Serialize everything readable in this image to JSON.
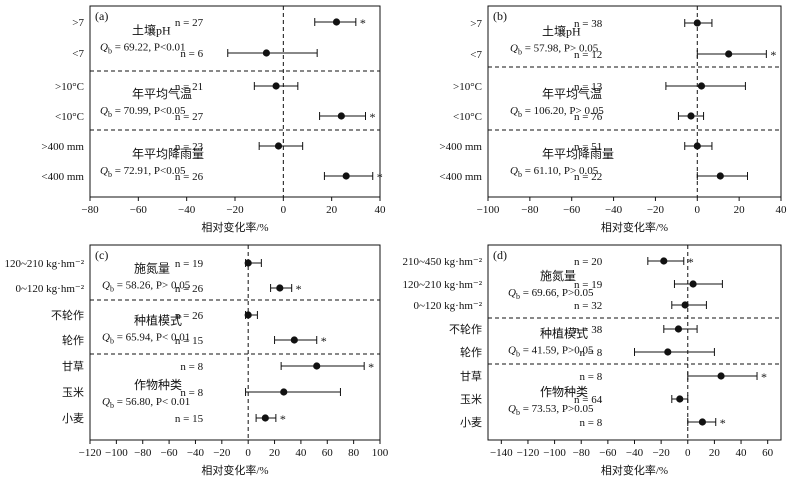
{
  "chart_data": [
    {
      "type": "forest",
      "panel_label": "(a)",
      "xlabel": "相对变化率/%",
      "xlim": [
        -80,
        40
      ],
      "xticks": [
        -80,
        -60,
        -40,
        -20,
        0,
        20,
        40
      ],
      "rows": [
        {
          "label": ">7",
          "n": "n = 27",
          "mean": 22,
          "ci": [
            13,
            30
          ],
          "sig": true
        },
        {
          "label": "<7",
          "n": "n = 6",
          "mean": -7,
          "ci": [
            -23,
            14
          ],
          "sig": false
        },
        {
          "label": ">10°C",
          "n": "n = 21",
          "mean": -3,
          "ci": [
            -12,
            6
          ],
          "sig": false
        },
        {
          "label": "<10°C",
          "n": "n = 27",
          "mean": 24,
          "ci": [
            15,
            34
          ],
          "sig": true
        },
        {
          "label": ">400 mm",
          "n": "n = 23",
          "mean": -2,
          "ci": [
            -10,
            8
          ],
          "sig": false
        },
        {
          "label": "<400 mm",
          "n": "n = 26",
          "mean": 26,
          "ci": [
            17,
            37
          ],
          "sig": true
        }
      ],
      "groups": [
        {
          "title": "土壤pH",
          "stat": "Qb = 69.22, P<0.01",
          "start": 0,
          "end": 1
        },
        {
          "title": "年平均气温",
          "stat": "Qb = 70.99, P<0.05",
          "start": 2,
          "end": 3
        },
        {
          "title": "年平均降雨量",
          "stat": "Qb = 72.91, P<0.05",
          "start": 4,
          "end": 5
        }
      ]
    },
    {
      "type": "forest",
      "panel_label": "(b)",
      "xlabel": "相对变化率/%",
      "xlim": [
        -100,
        40
      ],
      "xticks": [
        -100,
        -80,
        -60,
        -40,
        -20,
        0,
        20,
        40
      ],
      "rows": [
        {
          "label": ">7",
          "n": "n = 38",
          "mean": 0,
          "ci": [
            -6,
            7
          ],
          "sig": false
        },
        {
          "label": "<7",
          "n": "n = 12",
          "mean": 15,
          "ci": [
            0,
            33
          ],
          "sig": true
        },
        {
          "label": ">10°C",
          "n": "n = 13",
          "mean": 2,
          "ci": [
            -15,
            23
          ],
          "sig": false
        },
        {
          "label": "<10°C",
          "n": "n = 76",
          "mean": -3,
          "ci": [
            -9,
            3
          ],
          "sig": false
        },
        {
          "label": ">400 mm",
          "n": "n = 51",
          "mean": 0,
          "ci": [
            -6,
            7
          ],
          "sig": false
        },
        {
          "label": "<400 mm",
          "n": "n = 22",
          "mean": 11,
          "ci": [
            0,
            24
          ],
          "sig": false
        }
      ],
      "groups": [
        {
          "title": "土壤pH",
          "stat": "Qb = 57.98, P> 0.05",
          "start": 0,
          "end": 1
        },
        {
          "title": "年平均气温",
          "stat": "Qb = 106.20, P> 0.05",
          "start": 2,
          "end": 3
        },
        {
          "title": "年平均降雨量",
          "stat": "Qb = 61.10, P> 0.05",
          "start": 4,
          "end": 5
        }
      ]
    },
    {
      "type": "forest",
      "panel_label": "(c)",
      "xlabel": "相对变化率/%",
      "xlim": [
        -120,
        100
      ],
      "xticks": [
        -120,
        -100,
        -80,
        -60,
        -40,
        -20,
        0,
        20,
        40,
        60,
        80,
        100
      ],
      "rows": [
        {
          "label": "120~210 kg·hm⁻²",
          "n": "n = 19",
          "mean": 0,
          "ci": [
            -2,
            10
          ],
          "sig": false
        },
        {
          "label": "0~120 kg·hm⁻²",
          "n": "n = 26",
          "mean": 24,
          "ci": [
            17,
            33
          ],
          "sig": true
        },
        {
          "label": "不轮作",
          "n": "n = 26",
          "mean": 0,
          "ci": [
            -2,
            7
          ],
          "sig": false
        },
        {
          "label": "轮作",
          "n": "n = 15",
          "mean": 35,
          "ci": [
            20,
            52
          ],
          "sig": true
        },
        {
          "label": "甘草",
          "n": "n = 8",
          "mean": 52,
          "ci": [
            25,
            88
          ],
          "sig": true
        },
        {
          "label": "玉米",
          "n": "n = 8",
          "mean": 27,
          "ci": [
            -2,
            70
          ],
          "sig": false
        },
        {
          "label": "小麦",
          "n": "n = 15",
          "mean": 13,
          "ci": [
            6,
            21
          ],
          "sig": true
        }
      ],
      "groups": [
        {
          "title": "施氮量",
          "stat": "Qb = 58.26, P> 0.05",
          "start": 0,
          "end": 1
        },
        {
          "title": "种植模式",
          "stat": "Qb = 65.94, P< 0.01",
          "start": 2,
          "end": 3
        },
        {
          "title": "作物种类",
          "stat": "Qb = 56.80, P< 0.01",
          "start": 4,
          "end": 6
        }
      ]
    },
    {
      "type": "forest",
      "panel_label": "(d)",
      "xlabel": "相对变化率/%",
      "xlim": [
        -150,
        70
      ],
      "xticks": [
        -140,
        -120,
        -100,
        -80,
        -60,
        -40,
        -20,
        0,
        20,
        40,
        60
      ],
      "rows": [
        {
          "label": "210~450 kg·hm⁻²",
          "n": "n = 20",
          "mean": -18,
          "ci": [
            -30,
            -3
          ],
          "sig": true
        },
        {
          "label": "120~210 kg·hm⁻²",
          "n": "n = 19",
          "mean": 4,
          "ci": [
            -10,
            26
          ],
          "sig": false
        },
        {
          "label": "0~120 kg·hm⁻²",
          "n": "n = 32",
          "mean": -2,
          "ci": [
            -12,
            14
          ],
          "sig": false
        },
        {
          "label": "不轮作",
          "n": "n = 38",
          "mean": -7,
          "ci": [
            -18,
            7
          ],
          "sig": false
        },
        {
          "label": "轮作",
          "n": "n = 8",
          "mean": -15,
          "ci": [
            -40,
            20
          ],
          "sig": false
        },
        {
          "label": "甘草",
          "n": "n = 8",
          "mean": 25,
          "ci": [
            0,
            52
          ],
          "sig": true
        },
        {
          "label": "玉米",
          "n": "n = 64",
          "mean": -6,
          "ci": [
            -12,
            0
          ],
          "sig": false
        },
        {
          "label": "小麦",
          "n": "n = 8",
          "mean": 11,
          "ci": [
            0,
            21
          ],
          "sig": true
        }
      ],
      "groups": [
        {
          "title": "施氮量",
          "stat": "Qb = 69.66, P>0.05",
          "start": 0,
          "end": 2
        },
        {
          "title": "种植模式",
          "stat": "Qb = 41.59, P>0.05",
          "start": 3,
          "end": 4
        },
        {
          "title": "作物种类",
          "stat": "Qb = 73.53, P>0.05",
          "start": 5,
          "end": 7
        }
      ]
    }
  ]
}
